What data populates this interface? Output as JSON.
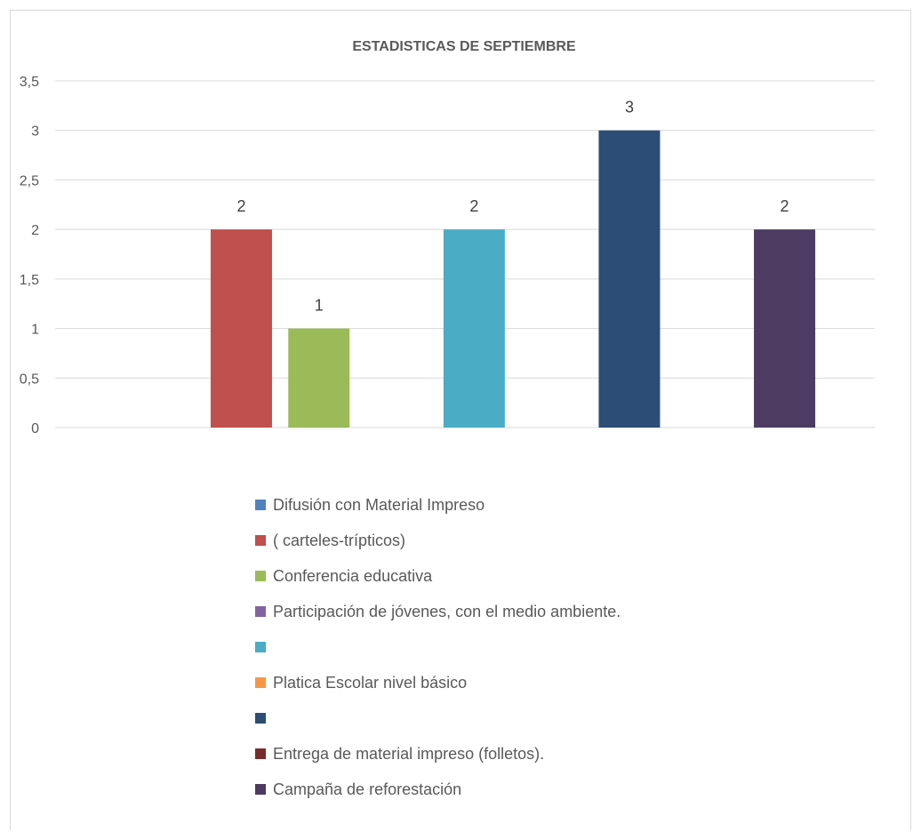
{
  "chart_data": {
    "type": "bar",
    "title": "ESTADISTICAS DE SEPTIEMBRE",
    "xlabel": "",
    "ylabel": "",
    "ylim": [
      0,
      3.5
    ],
    "yticks": [
      "0",
      "0,5",
      "1",
      "1,5",
      "2",
      "2,5",
      "3",
      "3,5"
    ],
    "grid": true,
    "legend_position": "bottom",
    "series": [
      {
        "name": "Difusión con Material Impreso",
        "value": null,
        "color": "#4F81BD"
      },
      {
        "name": "( carteles-trípticos)",
        "value": 2,
        "color": "#C0504D"
      },
      {
        "name": "Conferencia educativa",
        "value": 1,
        "color": "#9BBB59"
      },
      {
        "name": "Participación de jóvenes, con el medio ambiente.",
        "value": null,
        "color": "#8064A2"
      },
      {
        "name": "",
        "value": 2,
        "color": "#4BACC6"
      },
      {
        "name": "Platica Escolar nivel básico",
        "value": null,
        "color": "#F79646"
      },
      {
        "name": "",
        "value": 3,
        "color": "#2C4D75"
      },
      {
        "name": "Entrega de material impreso (folletos).",
        "value": null,
        "color": "#772C2A"
      },
      {
        "name": "Campaña de reforestación",
        "value": 2,
        "color": "#4D3B62"
      }
    ]
  }
}
